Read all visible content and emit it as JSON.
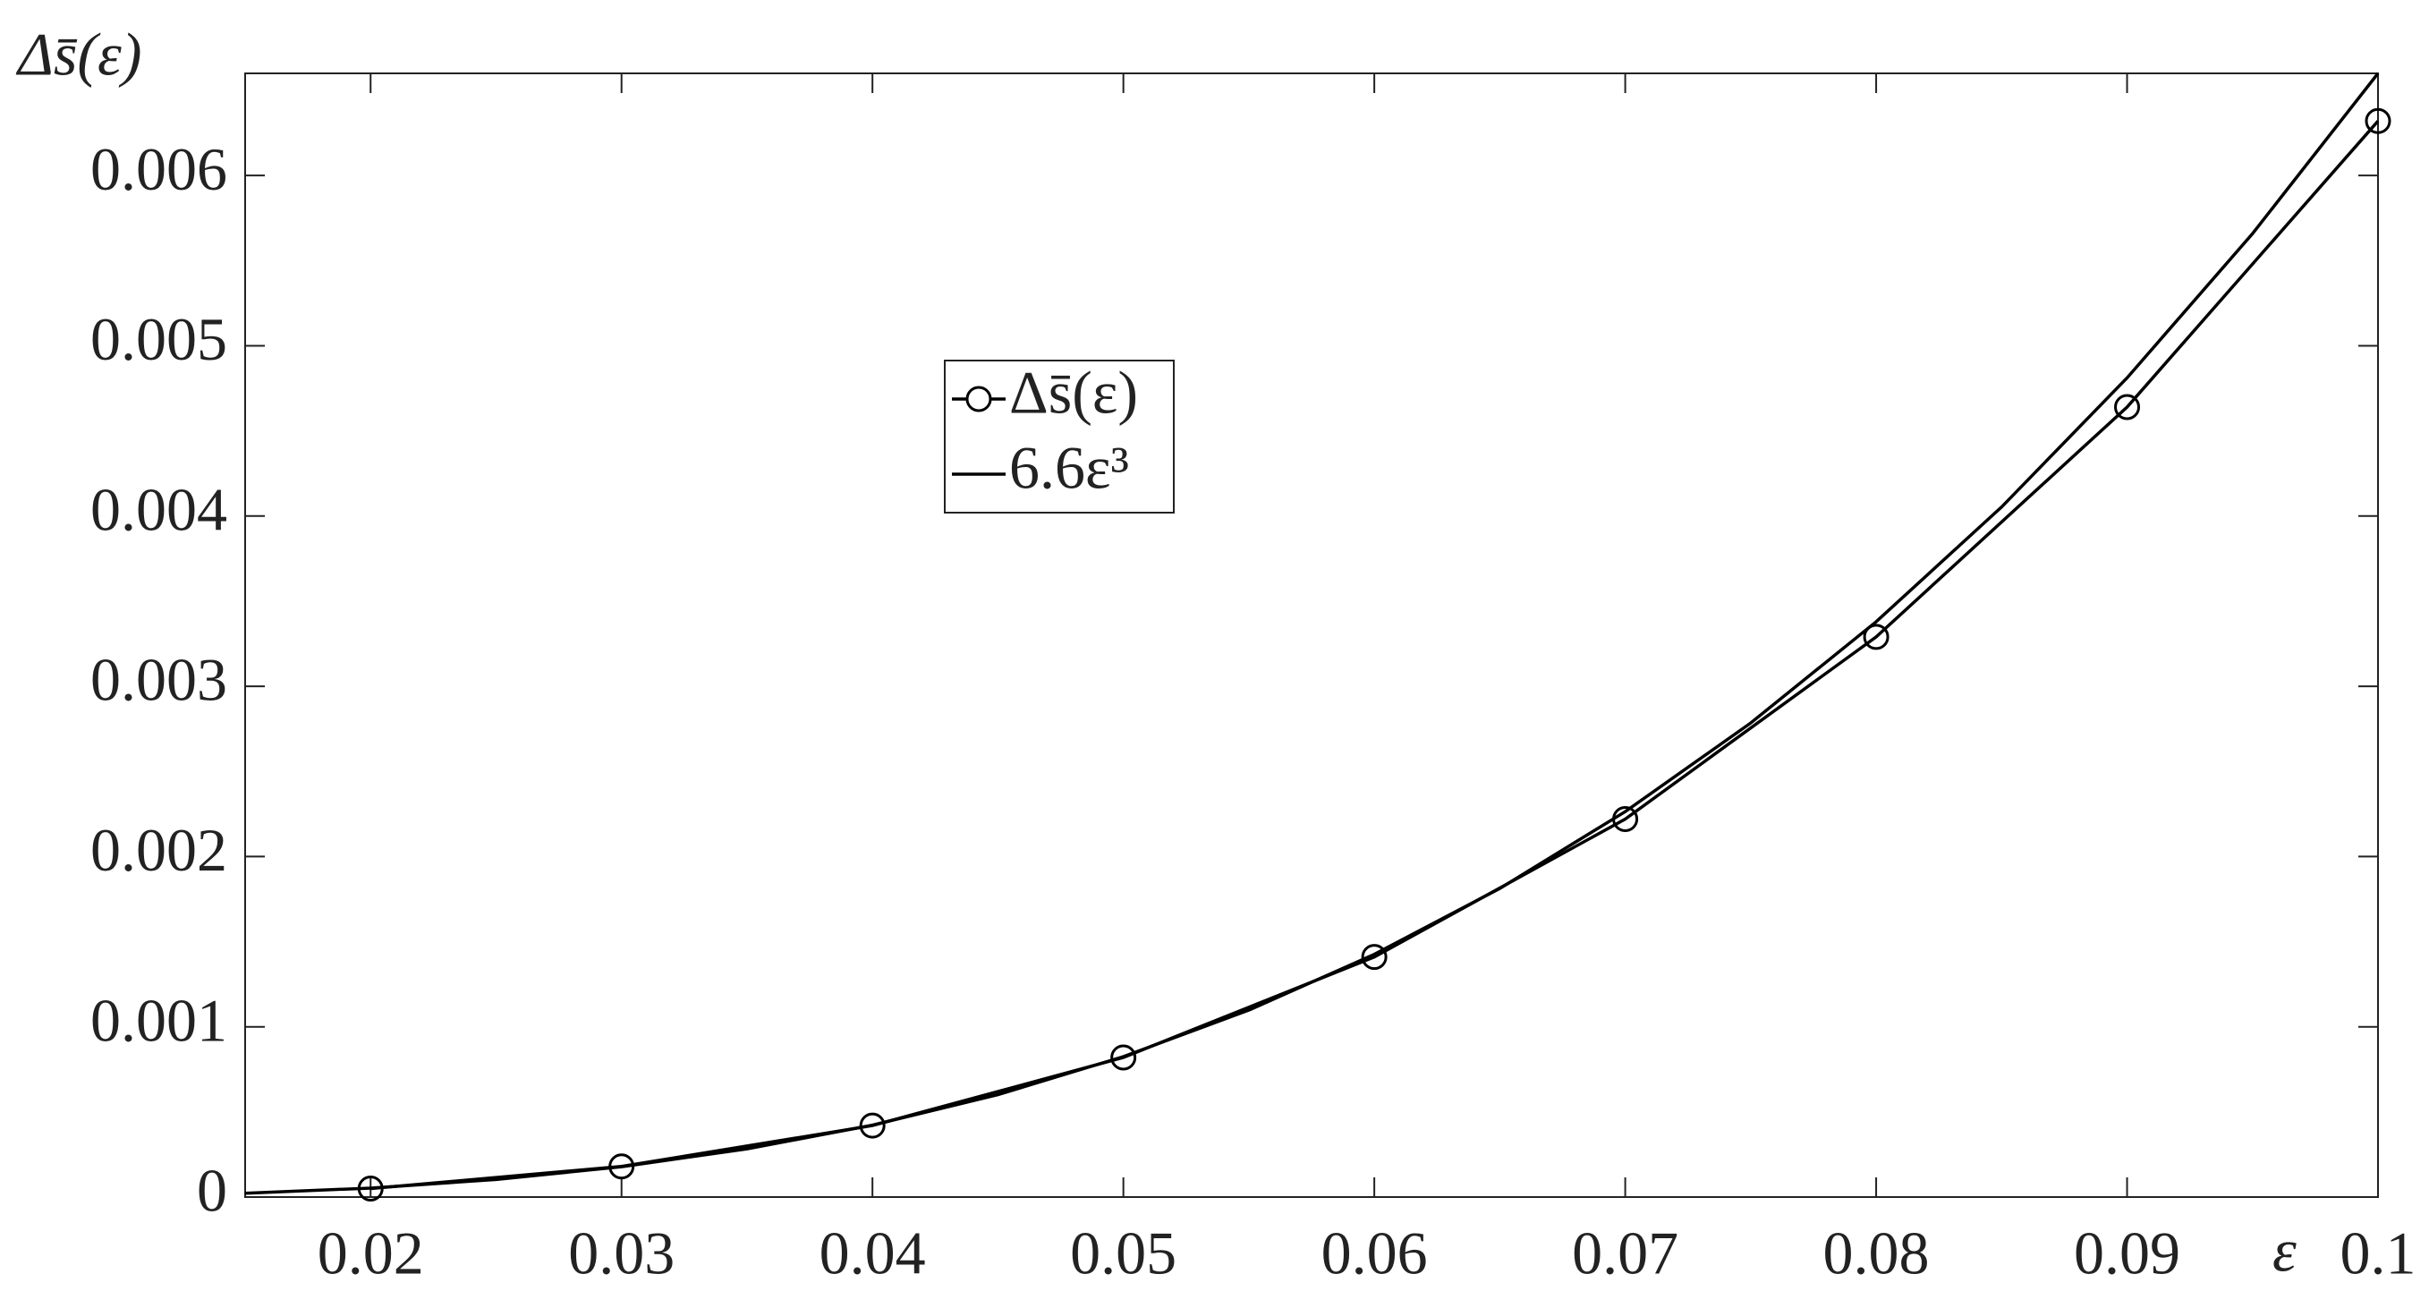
{
  "chart_data": {
    "type": "line",
    "ylabel": "Δs̄(ε)",
    "xlabel": "ε",
    "xlim": [
      0.015,
      0.1
    ],
    "xticks": [
      0.02,
      0.03,
      0.04,
      0.05,
      0.06,
      0.07,
      0.08,
      0.09,
      0.1
    ],
    "ylim": [
      0,
      0.0066
    ],
    "yticks": [
      0,
      0.001,
      0.002,
      0.003,
      0.004,
      0.005,
      0.006
    ],
    "grid": false,
    "legend": "upper center",
    "series": [
      {
        "name": "Δs̄(ε)",
        "color": "#000000",
        "marker": "circle",
        "x": [
          0.02,
          0.03,
          0.04,
          0.05,
          0.06,
          0.07,
          0.08,
          0.09,
          0.1
        ],
        "values": [
          5e-05,
          0.00018,
          0.00042,
          0.00082,
          0.00141,
          0.00222,
          0.00329,
          0.00464,
          0.00632
        ]
      },
      {
        "name": "6.6ε³",
        "color": "#000000",
        "marker": "none",
        "x": [
          0.015,
          0.02,
          0.025,
          0.03,
          0.035,
          0.04,
          0.045,
          0.05,
          0.055,
          0.06,
          0.065,
          0.07,
          0.075,
          0.08,
          0.085,
          0.09,
          0.095,
          0.1
        ],
        "values": [
          2.2275e-05,
          5.28e-05,
          0.000103125,
          0.0001782,
          0.000282975,
          0.0004224,
          0.000601425,
          0.000825,
          0.001098075,
          0.0014256,
          0.001812525,
          0.0022638,
          0.002784375,
          0.0033792,
          0.004053225,
          0.0048114,
          0.005658675,
          0.0066
        ]
      }
    ]
  }
}
